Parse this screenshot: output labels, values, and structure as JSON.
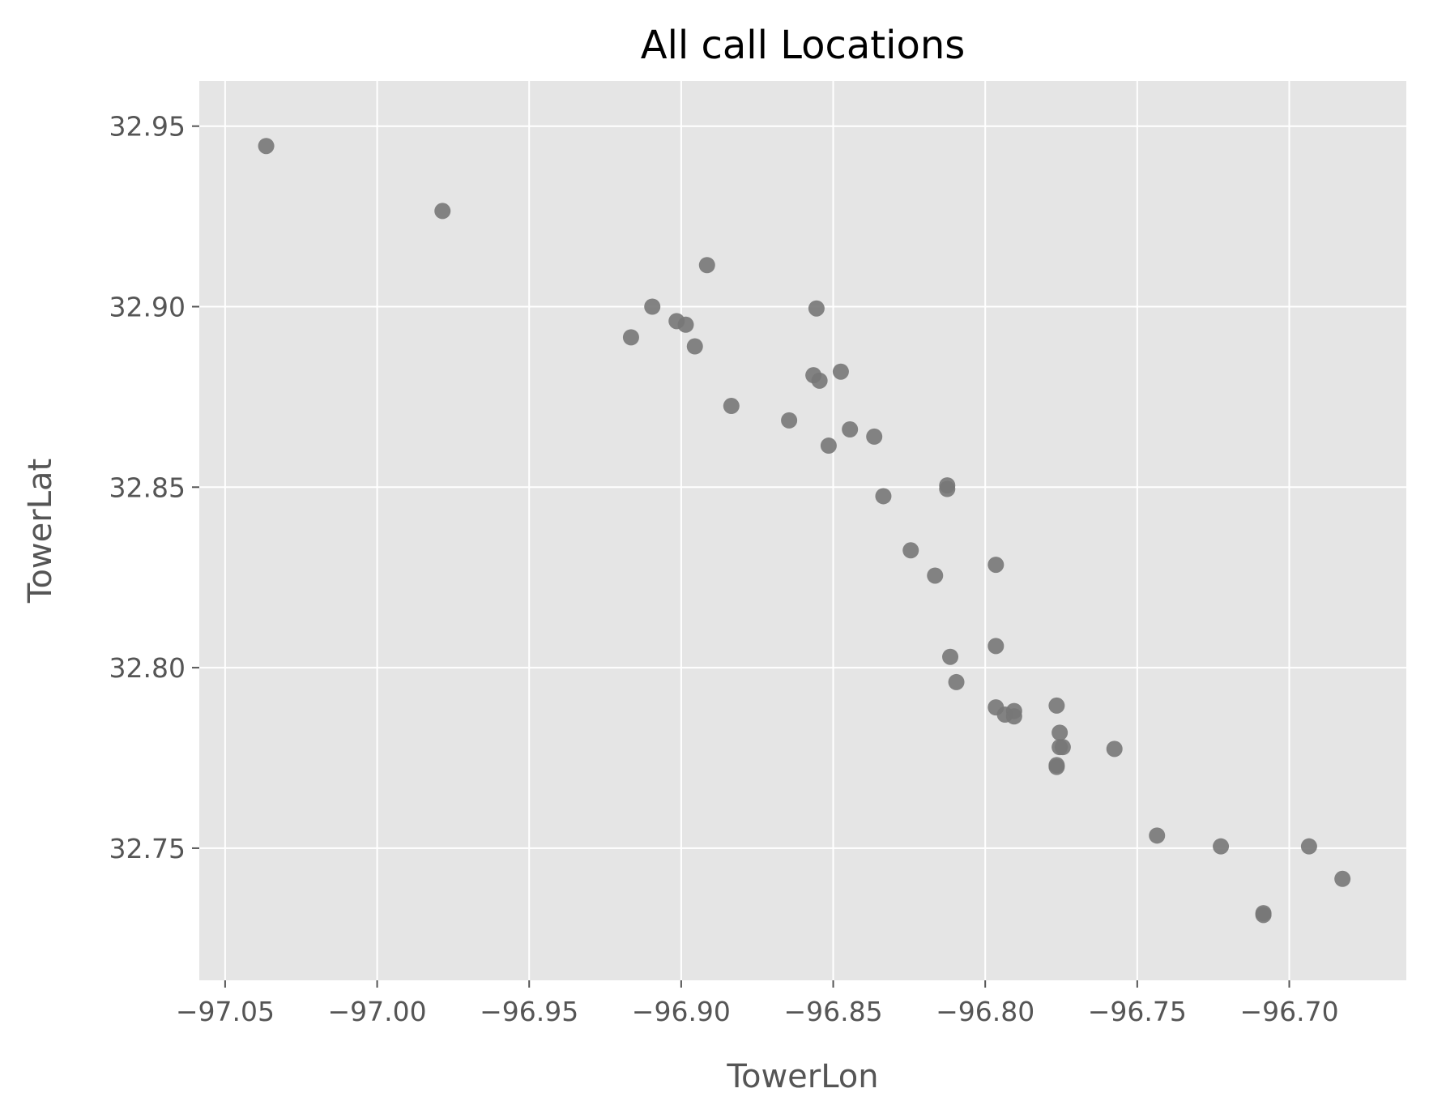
{
  "chart_data": {
    "type": "scatter",
    "title": "All call Locations",
    "xlabel": "TowerLon",
    "ylabel": "TowerLat",
    "xlim": [
      -97.0585,
      -96.6615
    ],
    "ylim": [
      32.7134,
      32.9625
    ],
    "xticks": [
      -97.05,
      -97.0,
      -96.95,
      -96.9,
      -96.85,
      -96.8,
      -96.75,
      -96.7
    ],
    "xtick_labels": [
      "−97.05",
      "−97.00",
      "−96.95",
      "−96.90",
      "−96.85",
      "−96.80",
      "−96.75",
      "−96.70"
    ],
    "yticks": [
      32.75,
      32.8,
      32.85,
      32.9,
      32.95
    ],
    "ytick_labels": [
      "32.75",
      "32.80",
      "32.85",
      "32.90",
      "32.95"
    ],
    "grid": true,
    "background": "#e5e5e5",
    "point_color": "#777777",
    "series": [
      {
        "x": [
          -97.0365,
          -96.9785,
          -96.8915,
          -96.9095,
          -96.9015,
          -96.8985,
          -96.8955,
          -96.9165,
          -96.8555,
          -96.8565,
          -96.8545,
          -96.8475,
          -96.8835,
          -96.8645,
          -96.8515,
          -96.8445,
          -96.8365,
          -96.8335,
          -96.8125,
          -96.8125,
          -96.8245,
          -96.8165,
          -96.7965,
          -96.7965,
          -96.8115,
          -96.8095,
          -96.7965,
          -96.7935,
          -96.7905,
          -96.7905,
          -96.7765,
          -96.7765,
          -96.7755,
          -96.7755,
          -96.7745,
          -96.7765,
          -96.7575,
          -96.7435,
          -96.7225,
          -96.7085,
          -96.7085,
          -96.6935,
          -96.6825
        ],
        "y": [
          32.9445,
          32.9265,
          32.9115,
          32.9,
          32.896,
          32.895,
          32.889,
          32.8915,
          32.8995,
          32.881,
          32.8795,
          32.882,
          32.8725,
          32.8685,
          32.8615,
          32.866,
          32.864,
          32.8475,
          32.8505,
          32.8495,
          32.8325,
          32.8255,
          32.8285,
          32.806,
          32.803,
          32.796,
          32.789,
          32.787,
          32.788,
          32.7865,
          32.7895,
          32.773,
          32.778,
          32.782,
          32.778,
          32.7725,
          32.7775,
          32.7535,
          32.7505,
          32.7315,
          32.732,
          32.7505,
          32.7415
        ]
      }
    ]
  }
}
